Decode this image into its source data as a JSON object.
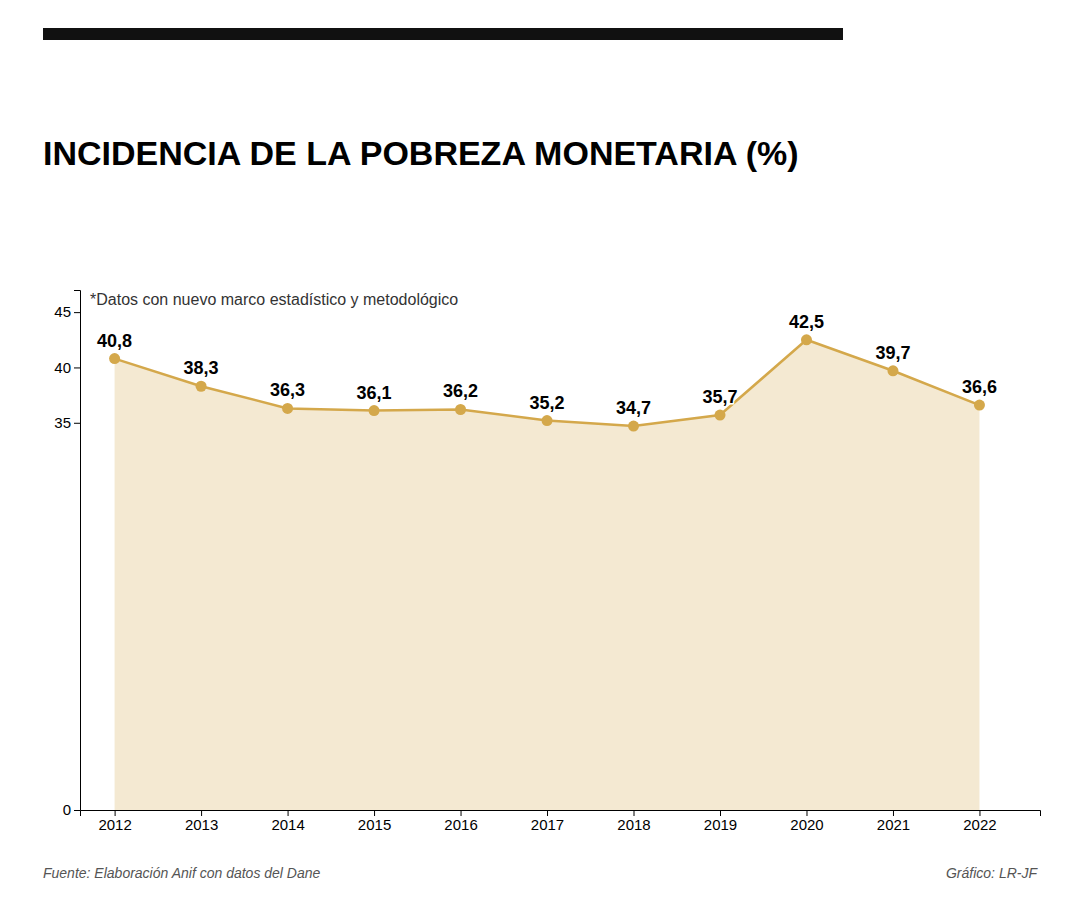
{
  "chart_data": {
    "type": "area",
    "title": "INCIDENCIA DE LA POBREZA MONETARIA (%)",
    "subtitle": "*Datos con nuevo marco estadístico y metodológico",
    "annotations": [
      "Fuente: Elaboración Anif con datos del Dane",
      "Gráfico: LR-JF"
    ],
    "x": [
      2012,
      2013,
      2014,
      2015,
      2016,
      2017,
      2018,
      2019,
      2020,
      2021,
      2022
    ],
    "values": [
      40.8,
      38.3,
      36.3,
      36.1,
      36.2,
      35.2,
      34.7,
      35.7,
      42.5,
      39.7,
      36.6
    ],
    "value_labels": [
      "40,8",
      "38,3",
      "36,3",
      "36,1",
      "36,2",
      "35,2",
      "34,7",
      "35,7",
      "42,5",
      "39,7",
      "36,6"
    ],
    "data_labels": true,
    "color": "#D4A84B",
    "marker": "circle",
    "xlim": [
      2011.6,
      2022.7
    ],
    "xticks": [
      2012,
      2013,
      2014,
      2015,
      2016,
      2017,
      2018,
      2019,
      2020,
      2021,
      2022
    ],
    "ylim": [
      0,
      47
    ],
    "yticks": [
      0,
      35,
      40,
      45
    ],
    "grid": false
  }
}
